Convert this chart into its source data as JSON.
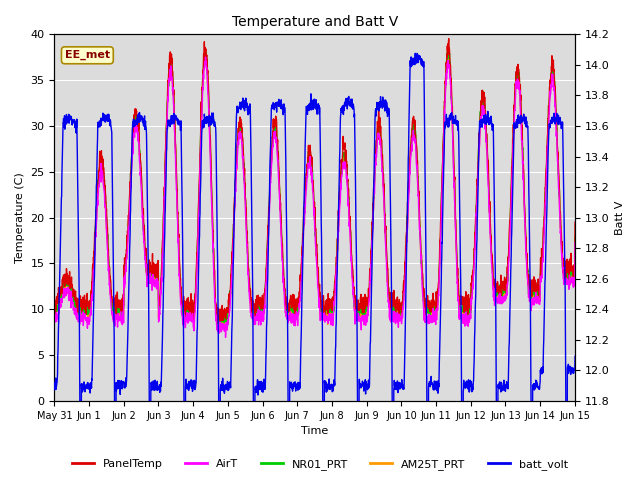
{
  "title": "Temperature and Batt V",
  "xlabel": "Time",
  "ylabel_left": "Temperature (C)",
  "ylabel_right": "Batt V",
  "ylim_left": [
    0,
    40
  ],
  "ylim_right": [
    11.8,
    14.2
  ],
  "annotation": "EE_met",
  "background_color": "#dcdcdc",
  "series": {
    "PanelTemp": {
      "color": "#dd0000",
      "lw": 1.0
    },
    "AirT": {
      "color": "#ff00ff",
      "lw": 1.0
    },
    "NR01_PRT": {
      "color": "#00cc00",
      "lw": 1.0
    },
    "AM25T_PRT": {
      "color": "#ff9900",
      "lw": 1.0
    },
    "batt_volt": {
      "color": "#0000ee",
      "lw": 1.0
    }
  },
  "xtick_labels": [
    "May 31",
    "Jun 1",
    "Jun 2",
    "Jun 3",
    "Jun 4",
    "Jun 5",
    "Jun 6",
    "Jun 7",
    "Jun 8",
    "Jun 9",
    "Jun 10",
    "Jun 11",
    "Jun 12",
    "Jun 13",
    "Jun 14",
    "Jun 15"
  ],
  "yticks_left": [
    0,
    5,
    10,
    15,
    20,
    25,
    30,
    35,
    40
  ],
  "yticks_right": [
    11.8,
    12.0,
    12.2,
    12.4,
    12.6,
    12.8,
    13.0,
    13.2,
    13.4,
    13.6,
    13.8,
    14.0,
    14.2
  ]
}
